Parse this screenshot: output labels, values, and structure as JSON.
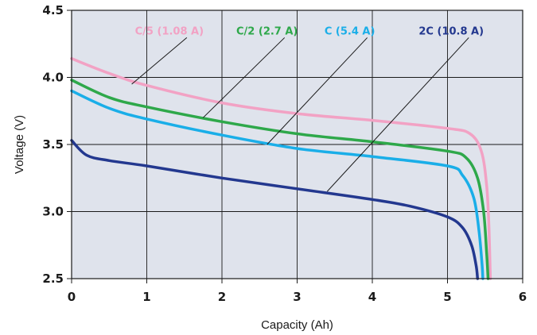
{
  "chart_data": {
    "type": "line",
    "title": "",
    "xlabel": "Capacity (Ah)",
    "ylabel": "Voltage (V)",
    "xlim": [
      0,
      6
    ],
    "ylim": [
      2.5,
      4.5
    ],
    "x_ticks": [
      "0",
      "1",
      "2",
      "3",
      "4",
      "5",
      "6"
    ],
    "y_ticks": [
      "2.5",
      "3.0",
      "3.5",
      "4.0",
      "4.5"
    ],
    "grid": true,
    "plot_background": "#dfe3ec",
    "series": [
      {
        "name": "C/5 (1.08 A)",
        "color": "#f2a2c4",
        "points": [
          [
            0,
            4.14
          ],
          [
            0.5,
            4.03
          ],
          [
            1,
            3.94
          ],
          [
            2,
            3.81
          ],
          [
            3,
            3.73
          ],
          [
            4,
            3.68
          ],
          [
            5,
            3.62
          ],
          [
            5.3,
            3.58
          ],
          [
            5.45,
            3.45
          ],
          [
            5.52,
            3.2
          ],
          [
            5.55,
            2.9
          ],
          [
            5.57,
            2.5
          ]
        ]
      },
      {
        "name": "C/2 (2.7 A)",
        "color": "#2ea84a",
        "points": [
          [
            0,
            3.98
          ],
          [
            0.5,
            3.85
          ],
          [
            1,
            3.78
          ],
          [
            2,
            3.67
          ],
          [
            3,
            3.58
          ],
          [
            4,
            3.52
          ],
          [
            5,
            3.45
          ],
          [
            5.25,
            3.4
          ],
          [
            5.4,
            3.25
          ],
          [
            5.48,
            3.0
          ],
          [
            5.52,
            2.7
          ],
          [
            5.54,
            2.5
          ]
        ]
      },
      {
        "name": "C (5.4 A)",
        "color": "#1aaee8",
        "points": [
          [
            0,
            3.9
          ],
          [
            0.5,
            3.77
          ],
          [
            1,
            3.69
          ],
          [
            2,
            3.57
          ],
          [
            3,
            3.47
          ],
          [
            4,
            3.41
          ],
          [
            5,
            3.34
          ],
          [
            5.2,
            3.27
          ],
          [
            5.35,
            3.1
          ],
          [
            5.42,
            2.85
          ],
          [
            5.46,
            2.6
          ],
          [
            5.47,
            2.5
          ]
        ]
      },
      {
        "name": "2C (10.8 A)",
        "color": "#23388f",
        "points": [
          [
            0,
            3.53
          ],
          [
            0.2,
            3.42
          ],
          [
            0.5,
            3.38
          ],
          [
            1,
            3.34
          ],
          [
            2,
            3.25
          ],
          [
            3,
            3.17
          ],
          [
            4,
            3.09
          ],
          [
            4.5,
            3.04
          ],
          [
            5,
            2.96
          ],
          [
            5.2,
            2.88
          ],
          [
            5.32,
            2.75
          ],
          [
            5.38,
            2.6
          ],
          [
            5.4,
            2.5
          ]
        ]
      }
    ],
    "annotations": [
      {
        "series": "C/5 (1.08 A)",
        "label_at": [
          1.3,
          4.32
        ],
        "point": [
          0.8,
          3.95
        ]
      },
      {
        "series": "C/2 (2.7 A)",
        "label_at": [
          2.6,
          4.32
        ],
        "point": [
          1.75,
          3.7
        ]
      },
      {
        "series": "C (5.4 A)",
        "label_at": [
          3.7,
          4.32
        ],
        "point": [
          2.6,
          3.5
        ]
      },
      {
        "series": "2C (10.8 A)",
        "label_at": [
          5.05,
          4.32
        ],
        "point": [
          3.4,
          3.15
        ]
      }
    ]
  }
}
